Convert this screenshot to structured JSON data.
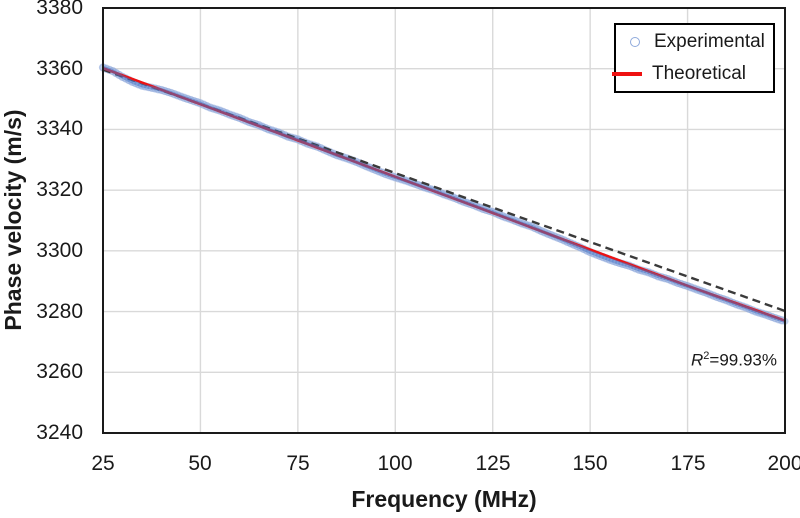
{
  "chart_data": {
    "type": "scatter",
    "title": "",
    "xlabel": "Frequency (MHz)",
    "ylabel": "Phase velocity (m/s)",
    "xlim": [
      25,
      200
    ],
    "ylim": [
      3240,
      3380
    ],
    "x_ticks": [
      25,
      50,
      75,
      100,
      125,
      150,
      175,
      200
    ],
    "y_ticks_desc": [
      3380,
      3360,
      3340,
      3320,
      3300,
      3280,
      3260,
      3240
    ],
    "grid": true,
    "legend_position": "top-right",
    "colors": {
      "grid": "#D9D9D9",
      "border": "#1a1a1a",
      "experimental_core": "#4472C4",
      "experimental_light": "#8FAADC",
      "theoretical": "#EE1111",
      "trendline": "#3a3a3a"
    },
    "annotation": {
      "r_symbol": "R",
      "exponent": "2",
      "rest": "=99.93%"
    },
    "series": [
      {
        "name": "Experimental",
        "render": "scatter-band",
        "color": "#4472C4",
        "light_color": "#8FAADC",
        "points": [
          [
            25,
            3360.4
          ],
          [
            27.5,
            3359.2
          ],
          [
            30,
            3357.3
          ],
          [
            32.5,
            3355.7
          ],
          [
            35,
            3354.4
          ],
          [
            37.5,
            3353.7
          ],
          [
            40,
            3353.0
          ],
          [
            42.5,
            3352.0
          ],
          [
            45,
            3350.8
          ],
          [
            47.5,
            3349.7
          ],
          [
            50,
            3348.6
          ],
          [
            52.5,
            3347.2
          ],
          [
            55,
            3346.2
          ],
          [
            57.5,
            3344.9
          ],
          [
            60,
            3343.8
          ],
          [
            62.5,
            3342.4
          ],
          [
            65,
            3341.4
          ],
          [
            67.5,
            3340.0
          ],
          [
            70,
            3339.0
          ],
          [
            72.5,
            3337.6
          ],
          [
            75,
            3336.7
          ],
          [
            77.5,
            3335.3
          ],
          [
            80,
            3334.3
          ],
          [
            82.5,
            3332.9
          ],
          [
            85,
            3331.5
          ],
          [
            87.5,
            3330.5
          ],
          [
            90,
            3329.3
          ],
          [
            92.5,
            3327.9
          ],
          [
            95,
            3326.6
          ],
          [
            97.5,
            3325.3
          ],
          [
            100,
            3324.2
          ],
          [
            102.5,
            3323.2
          ],
          [
            105,
            3322.1
          ],
          [
            107.5,
            3320.9
          ],
          [
            110,
            3319.9
          ],
          [
            112.5,
            3318.6
          ],
          [
            115,
            3317.5
          ],
          [
            117.5,
            3316.2
          ],
          [
            120,
            3315.1
          ],
          [
            122.5,
            3313.8
          ],
          [
            125,
            3312.8
          ],
          [
            127.5,
            3311.4
          ],
          [
            130,
            3310.3
          ],
          [
            132.5,
            3309.0
          ],
          [
            135,
            3308.0
          ],
          [
            137.5,
            3306.5
          ],
          [
            140,
            3305.2
          ],
          [
            142.5,
            3303.9
          ],
          [
            145,
            3302.5
          ],
          [
            147.5,
            3301.1
          ],
          [
            150,
            3299.6
          ],
          [
            152.5,
            3298.3
          ],
          [
            155,
            3297.1
          ],
          [
            157.5,
            3296.0
          ],
          [
            160,
            3295.1
          ],
          [
            162.5,
            3293.8
          ],
          [
            165,
            3292.9
          ],
          [
            167.5,
            3291.6
          ],
          [
            170,
            3290.7
          ],
          [
            172.5,
            3289.4
          ],
          [
            175,
            3288.4
          ],
          [
            177.5,
            3287.2
          ],
          [
            180,
            3286.1
          ],
          [
            182.5,
            3284.8
          ],
          [
            185,
            3283.7
          ],
          [
            187.5,
            3282.4
          ],
          [
            190,
            3281.3
          ],
          [
            192.5,
            3280.0
          ],
          [
            195,
            3279.0
          ],
          [
            197.5,
            3277.8
          ],
          [
            200,
            3276.8
          ]
        ]
      },
      {
        "name": "Theoretical",
        "render": "line",
        "color": "#EE1111",
        "points": [
          [
            25,
            3360.2
          ],
          [
            50,
            3348.3
          ],
          [
            75,
            3336.4
          ],
          [
            100,
            3324.4
          ],
          [
            125,
            3312.5
          ],
          [
            150,
            3300.4
          ],
          [
            175,
            3288.5
          ],
          [
            200,
            3277.0
          ]
        ]
      },
      {
        "name": "Trendline",
        "render": "dashed-line",
        "color": "#3a3a3a",
        "points": [
          [
            25,
            3359.7
          ],
          [
            200,
            3280.2
          ]
        ]
      }
    ]
  },
  "legend": {
    "items": [
      {
        "label": "Experimental",
        "marker": "open-circle-icon",
        "color": "#8FAADC"
      },
      {
        "label": "Theoretical",
        "marker": "line-swatch",
        "color": "#EE1111"
      }
    ]
  }
}
